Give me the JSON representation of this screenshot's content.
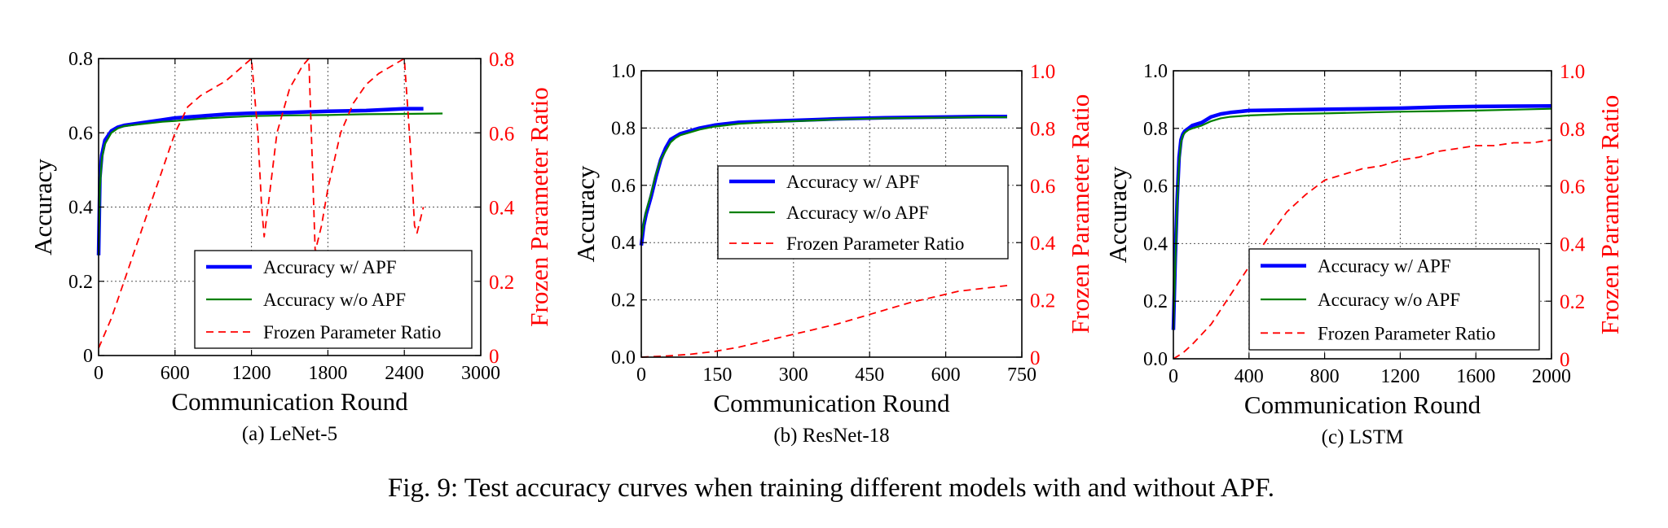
{
  "figure": {
    "caption": "Fig. 9: Test accuracy curves when training different models with and without APF."
  },
  "colors": {
    "series_apf": "#0000ff",
    "series_no_apf": "#008000",
    "series_frozen": "#ff0000",
    "right_axis": "#ff0000",
    "grid": "#555555"
  },
  "chart_data": [
    {
      "type": "line",
      "subtitle": "(a) LeNet-5",
      "xlabel": "Communication Round",
      "ylabel": "Accuracy",
      "y2label": "Frozen Parameter Ratio",
      "xlim": [
        0,
        3000
      ],
      "ylim": [
        0,
        0.8
      ],
      "y2lim": [
        0,
        0.8
      ],
      "xticks": [
        "0",
        "600",
        "1200",
        "1800",
        "2400",
        "3000"
      ],
      "yticks": [
        "0",
        "0.2",
        "0.4",
        "0.6",
        "0.8"
      ],
      "y2ticks": [
        "0",
        "0.2",
        "0.4",
        "0.6",
        "0.8"
      ],
      "grid": true,
      "legend_position": "lower-right",
      "series": [
        {
          "name": "Accuracy w/ APF",
          "axis": "left",
          "x": [
            0,
            10,
            25,
            50,
            100,
            150,
            200,
            300,
            400,
            500,
            600,
            800,
            1000,
            1200,
            1500,
            1800,
            2100,
            2400,
            2550
          ],
          "y": [
            0.27,
            0.48,
            0.54,
            0.58,
            0.605,
            0.615,
            0.62,
            0.625,
            0.63,
            0.635,
            0.64,
            0.645,
            0.65,
            0.653,
            0.655,
            0.658,
            0.66,
            0.665,
            0.665
          ]
        },
        {
          "name": "Accuracy w/o APF",
          "axis": "left",
          "x": [
            0,
            10,
            25,
            50,
            100,
            150,
            200,
            300,
            400,
            500,
            600,
            800,
            1000,
            1200,
            1500,
            1800,
            2100,
            2400,
            2700
          ],
          "y": [
            0.27,
            0.45,
            0.53,
            0.57,
            0.6,
            0.612,
            0.618,
            0.622,
            0.626,
            0.63,
            0.632,
            0.638,
            0.642,
            0.645,
            0.647,
            0.648,
            0.65,
            0.651,
            0.652
          ]
        },
        {
          "name": "Frozen Parameter Ratio",
          "axis": "right",
          "x": [
            0,
            100,
            200,
            300,
            400,
            500,
            600,
            700,
            800,
            900,
            1000,
            1100,
            1200,
            1250,
            1280,
            1300,
            1330,
            1400,
            1500,
            1600,
            1650,
            1680,
            1700,
            1750,
            1800,
            1900,
            2000,
            2100,
            2200,
            2300,
            2400,
            2450,
            2480,
            2500,
            2550
          ],
          "y": [
            0.02,
            0.1,
            0.2,
            0.3,
            0.4,
            0.5,
            0.6,
            0.67,
            0.7,
            0.72,
            0.74,
            0.77,
            0.8,
            0.6,
            0.4,
            0.32,
            0.4,
            0.6,
            0.72,
            0.78,
            0.8,
            0.5,
            0.28,
            0.35,
            0.45,
            0.6,
            0.68,
            0.73,
            0.76,
            0.78,
            0.8,
            0.55,
            0.35,
            0.33,
            0.4
          ]
        }
      ]
    },
    {
      "type": "line",
      "subtitle": "(b) ResNet-18",
      "xlabel": "Communication Round",
      "ylabel": "Accuracy",
      "y2label": "Frozen Parameter Ratio",
      "xlim": [
        0,
        780
      ],
      "ylim": [
        0,
        1.0
      ],
      "y2lim": [
        0,
        1.0
      ],
      "xticks": [
        "0",
        "150",
        "300",
        "450",
        "600",
        "750"
      ],
      "yticks": [
        "0.0",
        "0.2",
        "0.4",
        "0.6",
        "0.8",
        "1.0"
      ],
      "y2ticks": [
        "0",
        "0.2",
        "0.4",
        "0.6",
        "0.8",
        "1.0"
      ],
      "grid": true,
      "legend_position": "center-right",
      "series": [
        {
          "name": "Accuracy w/ APF",
          "axis": "left",
          "x": [
            0,
            5,
            10,
            20,
            30,
            40,
            50,
            60,
            70,
            80,
            100,
            120,
            150,
            175,
            200,
            250,
            300,
            350,
            400,
            500,
            600,
            700,
            750
          ],
          "y": [
            0.39,
            0.46,
            0.5,
            0.56,
            0.63,
            0.69,
            0.73,
            0.76,
            0.77,
            0.78,
            0.79,
            0.8,
            0.81,
            0.815,
            0.82,
            0.823,
            0.826,
            0.829,
            0.832,
            0.836,
            0.838,
            0.84,
            0.84
          ]
        },
        {
          "name": "Accuracy w/o APF",
          "axis": "left",
          "x": [
            0,
            5,
            10,
            20,
            30,
            40,
            50,
            60,
            70,
            80,
            100,
            120,
            150,
            175,
            200,
            250,
            300,
            350,
            400,
            500,
            600,
            700,
            750
          ],
          "y": [
            0.41,
            0.47,
            0.51,
            0.57,
            0.64,
            0.69,
            0.72,
            0.75,
            0.765,
            0.775,
            0.785,
            0.795,
            0.805,
            0.81,
            0.815,
            0.82,
            0.823,
            0.826,
            0.83,
            0.834,
            0.836,
            0.838,
            0.838
          ]
        },
        {
          "name": "Frozen Parameter Ratio",
          "axis": "right",
          "x": [
            0,
            50,
            100,
            150,
            200,
            250,
            300,
            350,
            400,
            450,
            500,
            550,
            600,
            650,
            700,
            750
          ],
          "y": [
            0,
            0.004,
            0.01,
            0.02,
            0.035,
            0.055,
            0.075,
            0.095,
            0.115,
            0.14,
            0.165,
            0.19,
            0.21,
            0.23,
            0.24,
            0.25
          ]
        }
      ]
    },
    {
      "type": "line",
      "subtitle": "(c) LSTM",
      "xlabel": "Communication Round",
      "ylabel": "Accuracy",
      "y2label": "Frozen Parameter Ratio",
      "xlim": [
        0,
        2000
      ],
      "ylim": [
        0,
        1.0
      ],
      "y2lim": [
        0,
        1.0
      ],
      "xticks": [
        "0",
        "400",
        "800",
        "1200",
        "1600",
        "2000"
      ],
      "yticks": [
        "0.0",
        "0.2",
        "0.4",
        "0.6",
        "0.8",
        "1.0"
      ],
      "y2ticks": [
        "0",
        "0.2",
        "0.4",
        "0.6",
        "0.8",
        "1.0"
      ],
      "grid": true,
      "legend_position": "lower-right",
      "series": [
        {
          "name": "Accuracy w/ APF",
          "axis": "left",
          "x": [
            0,
            10,
            20,
            30,
            40,
            50,
            60,
            80,
            100,
            150,
            200,
            250,
            300,
            400,
            600,
            800,
            1000,
            1200,
            1400,
            1600,
            1800,
            2000
          ],
          "y": [
            0.1,
            0.35,
            0.55,
            0.7,
            0.76,
            0.78,
            0.79,
            0.8,
            0.81,
            0.82,
            0.84,
            0.85,
            0.855,
            0.862,
            0.864,
            0.866,
            0.868,
            0.87,
            0.874,
            0.876,
            0.877,
            0.878
          ]
        },
        {
          "name": "Accuracy w/o APF",
          "axis": "left",
          "x": [
            0,
            10,
            20,
            30,
            40,
            50,
            60,
            80,
            100,
            150,
            200,
            250,
            300,
            400,
            600,
            800,
            1000,
            1200,
            1400,
            1600,
            1800,
            2000
          ],
          "y": [
            0.1,
            0.33,
            0.53,
            0.68,
            0.75,
            0.775,
            0.785,
            0.795,
            0.8,
            0.81,
            0.825,
            0.835,
            0.84,
            0.845,
            0.85,
            0.852,
            0.855,
            0.858,
            0.86,
            0.862,
            0.865,
            0.868
          ]
        },
        {
          "name": "Frozen Parameter Ratio",
          "axis": "right",
          "x": [
            0,
            50,
            100,
            200,
            300,
            400,
            500,
            600,
            700,
            800,
            900,
            1000,
            1100,
            1200,
            1300,
            1400,
            1500,
            1600,
            1700,
            1800,
            1900,
            2000
          ],
          "y": [
            0,
            0.02,
            0.05,
            0.12,
            0.22,
            0.32,
            0.42,
            0.51,
            0.57,
            0.62,
            0.64,
            0.66,
            0.67,
            0.69,
            0.7,
            0.72,
            0.73,
            0.74,
            0.74,
            0.75,
            0.75,
            0.76
          ]
        }
      ]
    }
  ]
}
